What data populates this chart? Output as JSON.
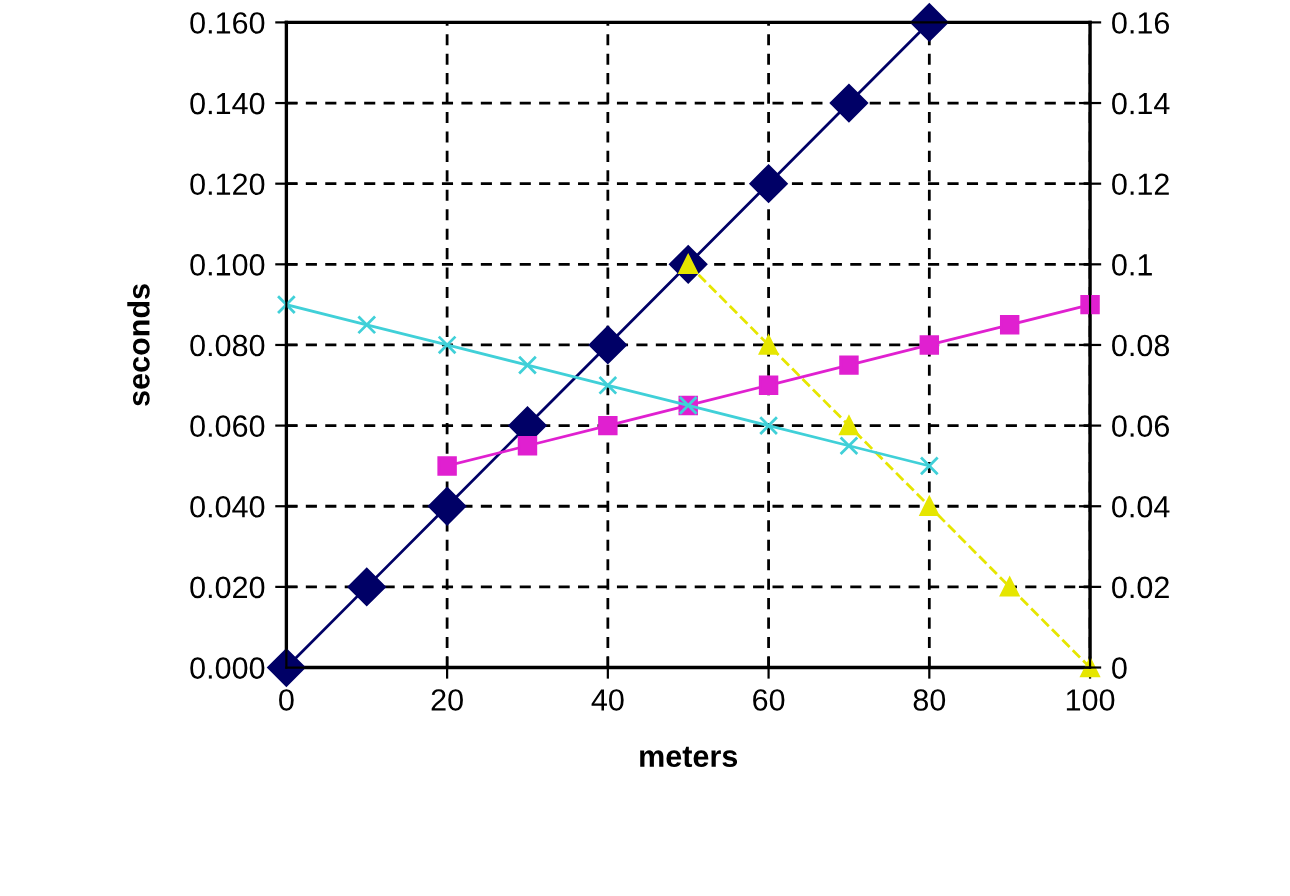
{
  "chart_data": {
    "type": "line",
    "xlabel": "meters",
    "ylabel": "seconds",
    "xlim": [
      0,
      100
    ],
    "xticks": [
      0,
      20,
      40,
      60,
      80,
      100
    ],
    "ylim": [
      0,
      0.16
    ],
    "yticks": [
      {
        "value": 0,
        "label": "0.000"
      },
      {
        "value": 0.02,
        "label": "0.020"
      },
      {
        "value": 0.04,
        "label": "0.040"
      },
      {
        "value": 0.06,
        "label": "0.060"
      },
      {
        "value": 0.08,
        "label": "0.080"
      },
      {
        "value": 0.1,
        "label": "0.100"
      },
      {
        "value": 0.12,
        "label": "0.120"
      },
      {
        "value": 0.14,
        "label": "0.140"
      },
      {
        "value": 0.16,
        "label": "0.160"
      }
    ],
    "y2lim": [
      0,
      0.16
    ],
    "y2ticks": [
      0,
      0.02,
      0.04,
      0.06,
      0.08,
      0.1,
      0.12,
      0.14,
      0.16
    ],
    "grid": true,
    "legend": false,
    "series": [
      {
        "color": "#000066",
        "marker": "diamond",
        "line_style": "solid",
        "x": [
          0,
          10,
          20,
          30,
          40,
          50,
          60,
          70,
          80
        ],
        "values": [
          0,
          0.02,
          0.04,
          0.06,
          0.08,
          0.1,
          0.12,
          0.14,
          0.16
        ]
      },
      {
        "color": "#e6e600",
        "marker": "triangle",
        "line_style": "dashed",
        "x": [
          50,
          60,
          70,
          80,
          90,
          100
        ],
        "values": [
          0.1,
          0.08,
          0.06,
          0.04,
          0.02,
          0
        ]
      },
      {
        "color": "#e020d0",
        "marker": "square",
        "line_style": "solid",
        "x": [
          20,
          30,
          40,
          50,
          60,
          70,
          80,
          90,
          100
        ],
        "values": [
          0.05,
          0.055,
          0.06,
          0.065,
          0.07,
          0.075,
          0.08,
          0.085,
          0.09
        ]
      },
      {
        "color": "#40d0d8",
        "marker": "cross",
        "line_style": "solid",
        "x": [
          0,
          10,
          20,
          30,
          40,
          50,
          60,
          70,
          80
        ],
        "values": [
          0.09,
          0.085,
          0.08,
          0.075,
          0.07,
          0.065,
          0.06,
          0.055,
          0.05
        ]
      }
    ]
  }
}
